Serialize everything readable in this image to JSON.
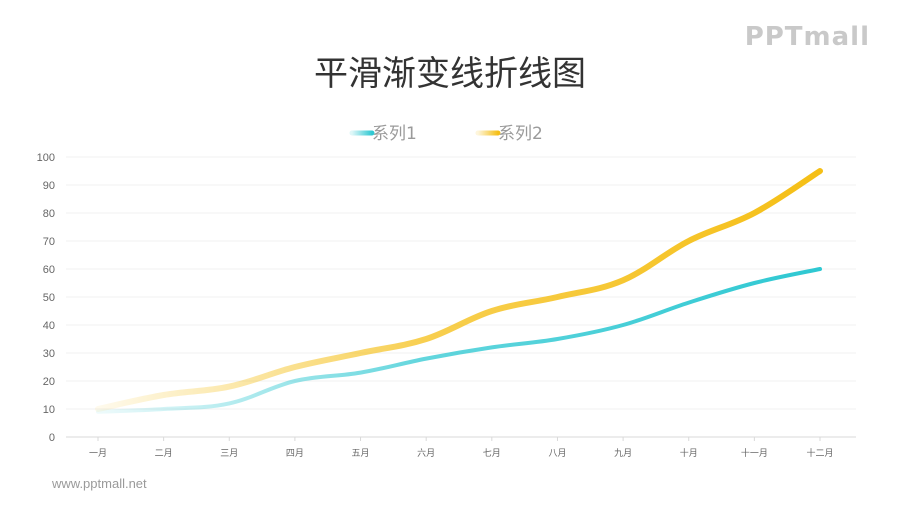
{
  "logo_text": "PPTmall",
  "footer_text": "www.pptmall.net",
  "chart_data": {
    "type": "line",
    "title": "平滑渐变线折线图",
    "categories": [
      "一月",
      "二月",
      "三月",
      "四月",
      "五月",
      "六月",
      "七月",
      "八月",
      "九月",
      "十月",
      "十一月",
      "十二月"
    ],
    "series": [
      {
        "name": "系列1",
        "values": [
          9,
          10,
          12,
          20,
          23,
          28,
          32,
          35,
          40,
          48,
          55,
          60
        ],
        "color": "#2ec8d2"
      },
      {
        "name": "系列2",
        "values": [
          10,
          15,
          18,
          25,
          30,
          35,
          45,
          50,
          56,
          70,
          80,
          95
        ],
        "color": "#f5bf16"
      }
    ],
    "ylim": [
      0,
      100
    ],
    "yticks": [
      "0",
      "10",
      "20",
      "30",
      "40",
      "50",
      "60",
      "70",
      "80",
      "90",
      "100"
    ],
    "grid": true,
    "legend_position": "top-center",
    "line_style": "smooth-gradient"
  }
}
